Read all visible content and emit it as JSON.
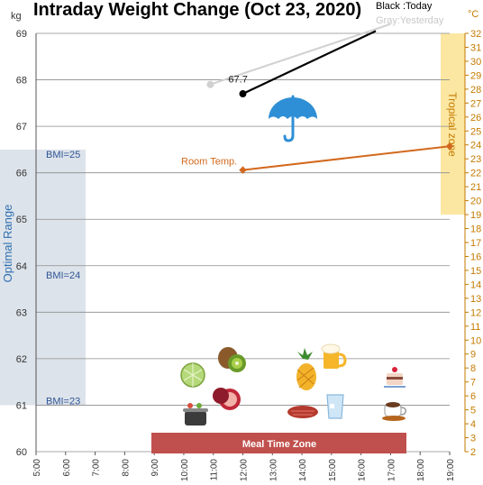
{
  "chart_data": {
    "type": "line",
    "title": "Intraday Weight Change (Oct 23, 2020)",
    "y_unit": "kg",
    "y2_unit": "°C",
    "ylim": [
      60,
      69
    ],
    "y2lim": [
      2,
      32
    ],
    "x_categories": [
      "5:00",
      "6:00",
      "7:00",
      "8:00",
      "9:00",
      "10:00",
      "11:00",
      "12:00",
      "13:00",
      "14:00",
      "15:00",
      "16:00",
      "17:00",
      "18:00",
      "19:00"
    ],
    "x_range_hours": [
      5,
      19
    ],
    "legend": {
      "today": "Black :Today",
      "yesterday": "Gray:Yesterday"
    },
    "series": [
      {
        "name": "Today",
        "color": "#000000",
        "points": [
          [
            12.0,
            67.7
          ],
          [
            16.5,
            69.05
          ]
        ]
      },
      {
        "name": "Yesterday",
        "color": "#d0d0d0",
        "points": [
          [
            10.9,
            67.9
          ],
          [
            17.0,
            69.2
          ]
        ],
        "label_value": "67.7"
      },
      {
        "name": "Room Temp.",
        "color": "#d2691e",
        "axis": "right",
        "points": [
          [
            12.0,
            22.2
          ],
          [
            19.0,
            23.9
          ]
        ]
      }
    ],
    "bands": {
      "optimal_range": {
        "label": "Optimal Range",
        "ymin": 61.0,
        "ymax": 66.5
      },
      "tropical_zone": {
        "label": "Tropical zone",
        "ymin": 19,
        "ymax": 32
      },
      "meal_time_zone": {
        "label": "Meal Time Zone",
        "xmin": 9,
        "xmax": 18
      }
    },
    "bmi_labels": [
      {
        "text": "BMI=25",
        "y": 66.4
      },
      {
        "text": "BMI=24",
        "y": 63.8
      },
      {
        "text": "BMI=23",
        "y": 61.1
      }
    ],
    "grid": true
  },
  "icons": [
    "umbrella-icon",
    "melon-icon",
    "kiwi-icon",
    "cooking-pot-icon",
    "pomegranate-icon",
    "pineapple-icon",
    "beer-icon",
    "steak-icon",
    "water-glass-icon",
    "cake-icon",
    "coffee-cup-icon"
  ],
  "colors": {
    "optimal_band": "#dde3ea",
    "tropical_band": "#fbe7a2",
    "tropical_text": "#c57a00",
    "meal_band": "#c0504d",
    "room_temp": "#d2691e",
    "bmi_text": "#2f5597",
    "optimal_text": "#2f6fb0"
  }
}
